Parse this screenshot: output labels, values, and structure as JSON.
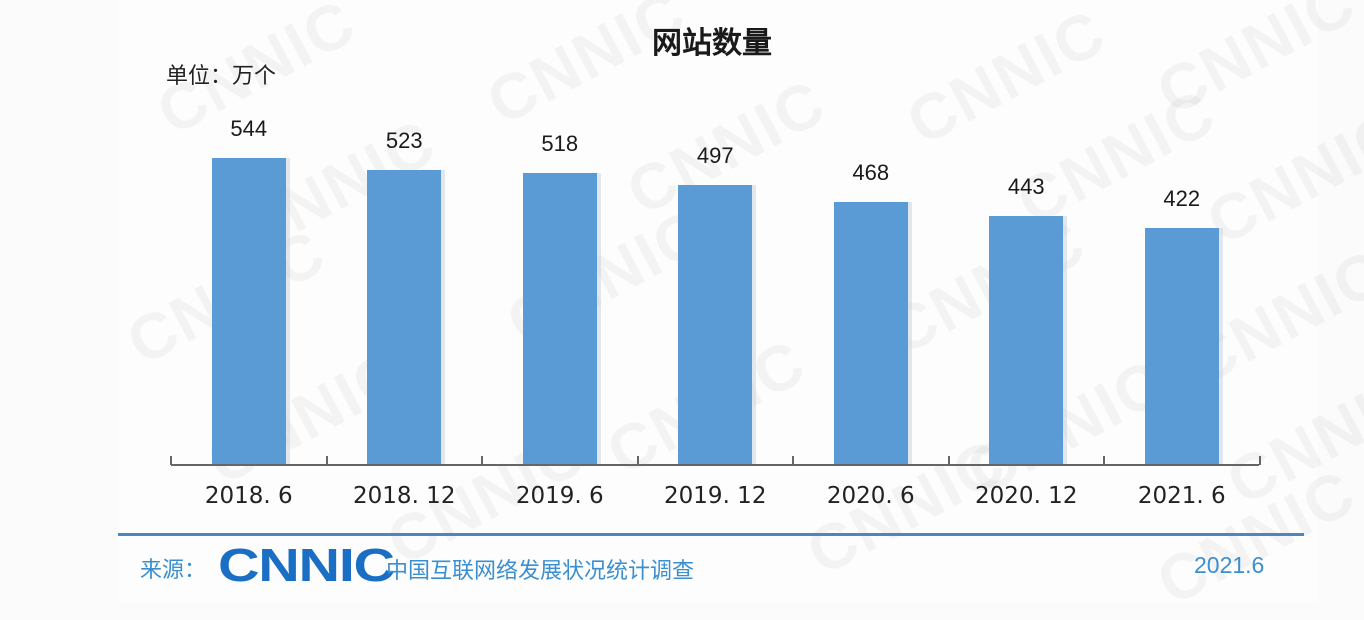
{
  "title": "网站数量",
  "unit_label": "单位：万个",
  "footer": {
    "source_label": "来源：",
    "logo_text": "CNNIC",
    "survey_name": "中国互联网络发展状况统计调查",
    "date": "2021.6"
  },
  "watermark": "CNNIC",
  "colors": {
    "bar": "#5b9bd5",
    "footer_accent": "#3b8fd0",
    "logo": "#1a6fc4"
  },
  "chart_data": {
    "type": "bar",
    "title": "网站数量",
    "xlabel": "",
    "ylabel": "单位：万个",
    "categories": [
      "2018. 6",
      "2018. 12",
      "2019. 6",
      "2019. 12",
      "2020. 6",
      "2020. 12",
      "2021. 6"
    ],
    "values": [
      544,
      523,
      518,
      497,
      468,
      443,
      422
    ],
    "data_labels": [
      "544",
      "523",
      "518",
      "497",
      "468",
      "443",
      "422"
    ],
    "grid": false,
    "legend": null
  }
}
